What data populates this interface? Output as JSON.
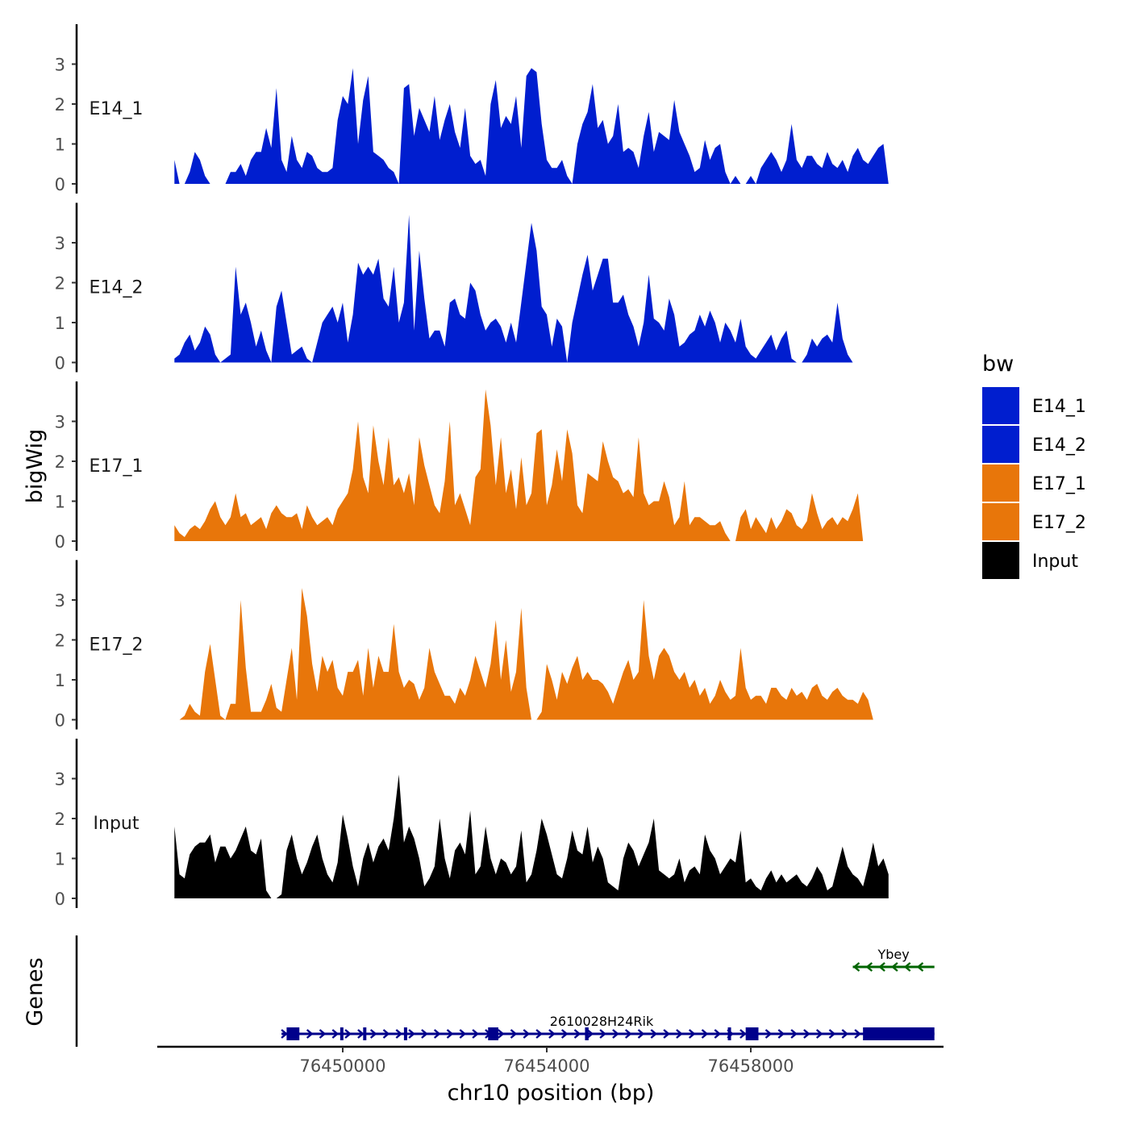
{
  "chart_data": {
    "type": "area",
    "title": "",
    "ylabel": "bigWig",
    "genes_label": "Genes",
    "xlabel": "chr10 position (bp)",
    "xlim": [
      76446000,
      76461600
    ],
    "ylim": [
      0,
      3.9
    ],
    "y_ticks": [
      "0",
      "1",
      "2",
      "3"
    ],
    "x_ticks": [
      {
        "value": 76450000,
        "label": "76450000"
      },
      {
        "value": 76454000,
        "label": "76454000"
      },
      {
        "value": 76458000,
        "label": "76458000"
      }
    ],
    "legend": {
      "title": "bw",
      "placement": "right",
      "entries": [
        {
          "label": "E14_1",
          "color": "#001ecf"
        },
        {
          "label": "E14_2",
          "color": "#001ecf"
        },
        {
          "label": "E17_1",
          "color": "#e8760a"
        },
        {
          "label": "E17_2",
          "color": "#e8760a"
        },
        {
          "label": "Input",
          "color": "#000000"
        }
      ]
    },
    "x_start": 76446700,
    "x_step": 100,
    "series": [
      {
        "name": "E14_1",
        "color": "#001ecf",
        "values": [
          0.6,
          0,
          0,
          0.3,
          0.8,
          0.6,
          0.2,
          0,
          0,
          0,
          0,
          0.3,
          0.3,
          0.5,
          0.2,
          0.6,
          0.8,
          0.8,
          1.4,
          0.9,
          2.4,
          0.6,
          0.3,
          1.2,
          0.6,
          0.4,
          0.8,
          0.7,
          0.4,
          0.3,
          0.3,
          0.4,
          1.6,
          2.2,
          2.0,
          2.9,
          1.0,
          2.1,
          2.7,
          0.8,
          0.7,
          0.6,
          0.4,
          0.3,
          0,
          2.4,
          2.5,
          1.2,
          1.9,
          1.6,
          1.3,
          2.2,
          1.1,
          1.6,
          2.0,
          1.3,
          0.9,
          1.9,
          0.7,
          0.5,
          0.6,
          0.2,
          2.0,
          2.6,
          1.4,
          1.7,
          1.5,
          2.2,
          0.9,
          2.7,
          2.9,
          2.8,
          1.5,
          0.6,
          0.4,
          0.4,
          0.6,
          0.2,
          0,
          1.0,
          1.5,
          1.8,
          2.5,
          1.4,
          1.6,
          1.0,
          1.2,
          2.0,
          0.8,
          0.9,
          0.8,
          0.4,
          1.2,
          1.8,
          0.8,
          1.3,
          1.2,
          1.1,
          2.1,
          1.3,
          1.0,
          0.7,
          0.3,
          0.4,
          1.1,
          0.6,
          0.9,
          1.0,
          0.3,
          0,
          0.2,
          0,
          0,
          0.2,
          0,
          0.4,
          0.6,
          0.8,
          0.6,
          0.3,
          0.6,
          1.5,
          0.6,
          0.4,
          0.7,
          0.7,
          0.5,
          0.4,
          0.8,
          0.5,
          0.4,
          0.6,
          0.3,
          0.7,
          0.9,
          0.6,
          0.5,
          0.7,
          0.9,
          1.0,
          0
        ]
      },
      {
        "name": "E14_2",
        "color": "#001ecf",
        "values": [
          0.1,
          0.2,
          0.5,
          0.7,
          0.3,
          0.5,
          0.9,
          0.7,
          0.2,
          0,
          0.1,
          0.2,
          2.4,
          1.2,
          1.5,
          1.0,
          0.4,
          0.8,
          0.3,
          0,
          1.4,
          1.8,
          1.0,
          0.2,
          0.3,
          0.4,
          0.1,
          0,
          0.5,
          1.0,
          1.2,
          1.4,
          1.0,
          1.5,
          0.5,
          1.2,
          2.5,
          2.2,
          2.4,
          2.2,
          2.6,
          1.6,
          1.4,
          2.4,
          1.0,
          1.5,
          3.7,
          0.8,
          2.8,
          1.6,
          0.6,
          0.8,
          0.8,
          0.4,
          1.5,
          1.6,
          1.2,
          1.1,
          2.0,
          1.8,
          1.2,
          0.8,
          1.0,
          1.1,
          0.9,
          0.5,
          1.0,
          0.5,
          1.5,
          2.5,
          3.5,
          2.8,
          1.4,
          1.2,
          0.4,
          1.1,
          0.9,
          0,
          1.0,
          1.6,
          2.2,
          2.7,
          1.8,
          2.2,
          2.6,
          2.6,
          1.5,
          1.5,
          1.7,
          1.2,
          0.9,
          0.4,
          1.0,
          2.2,
          1.1,
          1.0,
          0.8,
          1.6,
          1.2,
          0.4,
          0.5,
          0.7,
          0.8,
          1.2,
          0.9,
          1.3,
          1.0,
          0.5,
          1.0,
          0.8,
          0.5,
          1.1,
          0.4,
          0.2,
          0.1,
          0.3,
          0.5,
          0.7,
          0.3,
          0.6,
          0.8,
          0.1,
          0,
          0,
          0.2,
          0.6,
          0.4,
          0.6,
          0.7,
          0.5,
          1.5,
          0.6,
          0.2,
          0,
          0,
          0,
          0,
          0,
          0,
          0
        ]
      },
      {
        "name": "E17_1",
        "color": "#e8760a",
        "values": [
          0.4,
          0.2,
          0.1,
          0.3,
          0.4,
          0.3,
          0.5,
          0.8,
          1.0,
          0.6,
          0.4,
          0.6,
          1.2,
          0.6,
          0.7,
          0.4,
          0.5,
          0.6,
          0.3,
          0.7,
          0.9,
          0.7,
          0.6,
          0.6,
          0.7,
          0.3,
          0.9,
          0.6,
          0.4,
          0.5,
          0.6,
          0.4,
          0.8,
          1.0,
          1.2,
          1.8,
          3.0,
          1.6,
          1.2,
          2.9,
          2.0,
          1.4,
          2.6,
          1.4,
          1.6,
          1.2,
          1.7,
          0.9,
          2.6,
          1.9,
          1.4,
          0.9,
          0.7,
          1.5,
          3.0,
          0.9,
          1.2,
          0.8,
          0.4,
          1.6,
          1.8,
          3.8,
          2.9,
          1.4,
          2.6,
          1.2,
          1.8,
          0.8,
          2.1,
          0.9,
          1.2,
          2.7,
          2.8,
          0.9,
          1.4,
          2.3,
          1.5,
          2.8,
          2.2,
          0.9,
          0.7,
          1.7,
          1.6,
          1.5,
          2.5,
          2.0,
          1.6,
          1.5,
          1.2,
          1.3,
          1.1,
          2.6,
          1.2,
          0.9,
          1.0,
          1.0,
          1.5,
          1.1,
          0.4,
          0.6,
          1.5,
          0.4,
          0.6,
          0.6,
          0.5,
          0.4,
          0.4,
          0.5,
          0.2,
          0,
          0,
          0.6,
          0.8,
          0.3,
          0.6,
          0.4,
          0.2,
          0.6,
          0.3,
          0.5,
          0.8,
          0.7,
          0.4,
          0.3,
          0.5,
          1.2,
          0.7,
          0.3,
          0.5,
          0.6,
          0.4,
          0.6,
          0.5,
          0.8,
          1.2,
          0
        ]
      },
      {
        "name": "E17_2",
        "color": "#e8760a",
        "values": [
          0,
          0,
          0.1,
          0.4,
          0.2,
          0.1,
          1.2,
          1.9,
          1.0,
          0.1,
          0,
          0.4,
          0.4,
          3.0,
          1.3,
          0.2,
          0.2,
          0.2,
          0.5,
          0.9,
          0.3,
          0.2,
          1.0,
          1.8,
          0.5,
          3.3,
          2.6,
          1.4,
          0.7,
          1.6,
          1.2,
          1.5,
          0.8,
          0.6,
          1.2,
          1.2,
          1.5,
          0.6,
          1.8,
          0.8,
          1.6,
          1.2,
          1.2,
          2.4,
          1.2,
          0.8,
          1.0,
          0.9,
          0.5,
          0.8,
          1.8,
          1.2,
          0.9,
          0.6,
          0.6,
          0.4,
          0.8,
          0.6,
          1.0,
          1.6,
          1.2,
          0.8,
          1.4,
          2.5,
          1.0,
          2.0,
          0.7,
          1.2,
          2.8,
          0.8,
          0,
          0,
          0.2,
          1.4,
          1.0,
          0.5,
          1.2,
          0.9,
          1.3,
          1.6,
          1.0,
          1.2,
          1.0,
          1.0,
          0.9,
          0.7,
          0.4,
          0.8,
          1.2,
          1.5,
          1.0,
          1.2,
          3.0,
          1.6,
          1.0,
          1.6,
          1.8,
          1.6,
          1.2,
          1.0,
          1.2,
          0.8,
          1.0,
          0.6,
          0.8,
          0.4,
          0.6,
          1.0,
          0.7,
          0.5,
          0.6,
          1.8,
          0.8,
          0.5,
          0.6,
          0.6,
          0.4,
          0.8,
          0.8,
          0.6,
          0.5,
          0.8,
          0.6,
          0.7,
          0.5,
          0.8,
          0.9,
          0.6,
          0.5,
          0.7,
          0.8,
          0.6,
          0.5,
          0.5,
          0.4,
          0.7,
          0.5,
          0
        ]
      },
      {
        "name": "Input",
        "color": "#000000",
        "values": [
          1.8,
          0.6,
          0.5,
          1.1,
          1.3,
          1.4,
          1.4,
          1.6,
          0.9,
          1.3,
          1.3,
          1.0,
          1.2,
          1.5,
          1.8,
          1.2,
          1.1,
          1.5,
          0.2,
          0,
          0,
          0.1,
          1.2,
          1.6,
          1.0,
          0.6,
          0.9,
          1.3,
          1.6,
          1.0,
          0.6,
          0.4,
          0.9,
          2.1,
          1.5,
          0.8,
          0.3,
          1.0,
          1.4,
          0.9,
          1.3,
          1.5,
          1.2,
          2.0,
          3.1,
          1.4,
          1.8,
          1.5,
          1.0,
          0.3,
          0.5,
          0.8,
          2.0,
          1.0,
          0.5,
          1.2,
          1.4,
          1.1,
          2.2,
          0.6,
          0.8,
          1.8,
          1.0,
          0.6,
          1.0,
          0.9,
          0.6,
          0.8,
          1.7,
          0.4,
          0.6,
          1.2,
          2.0,
          1.6,
          1.1,
          0.6,
          0.5,
          1.0,
          1.7,
          1.2,
          1.1,
          1.8,
          0.9,
          1.3,
          1.0,
          0.4,
          0.3,
          0.2,
          1.0,
          1.4,
          1.2,
          0.8,
          1.1,
          1.4,
          2.0,
          0.7,
          0.6,
          0.5,
          0.6,
          1.0,
          0.4,
          0.7,
          0.8,
          0.6,
          1.6,
          1.2,
          1.0,
          0.6,
          0.8,
          1.0,
          0.9,
          1.7,
          0.4,
          0.5,
          0.3,
          0.2,
          0.5,
          0.7,
          0.4,
          0.6,
          0.4,
          0.5,
          0.6,
          0.4,
          0.3,
          0.5,
          0.8,
          0.6,
          0.2,
          0.3,
          0.8,
          1.3,
          0.8,
          0.6,
          0.5,
          0.3,
          0.8,
          1.4,
          0.8,
          1.0,
          0.6
        ]
      }
    ],
    "genes": [
      {
        "name": "2610028H24Rik",
        "strand": "+",
        "color": "#00008b",
        "start": 76448800,
        "end": 76461600,
        "exons": [
          [
            76448900,
            76449150
          ],
          [
            76449950,
            76450000
          ],
          [
            76450400,
            76450450
          ],
          [
            76451200,
            76451260
          ],
          [
            76452850,
            76453050
          ],
          [
            76454750,
            76454820
          ],
          [
            76457550,
            76457610
          ],
          [
            76457900,
            76458150
          ],
          [
            76460200,
            76461600
          ]
        ]
      },
      {
        "name": "Ybey",
        "strand": "-",
        "color": "#006400",
        "start": 76460000,
        "end": 76461600,
        "exons": []
      }
    ]
  }
}
